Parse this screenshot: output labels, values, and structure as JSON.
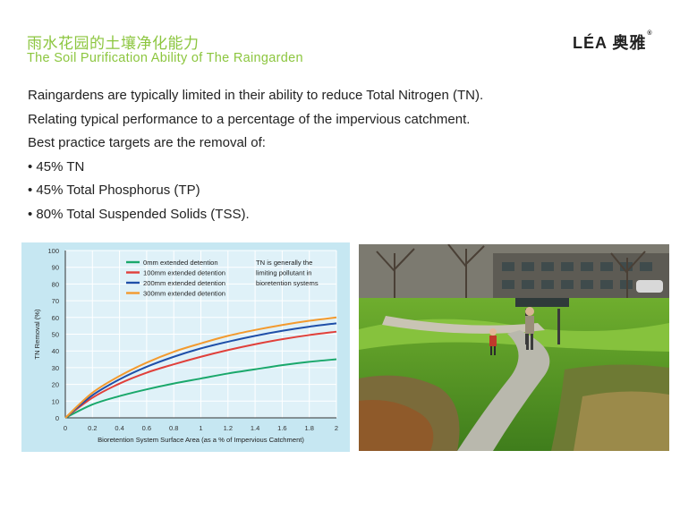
{
  "header": {
    "title_cn": "雨水花园的土壤净化能力",
    "title_en": "The Soil Purification Ability of The Raingarden",
    "logo_text": "LÉA 奥雅",
    "logo_mark": "®"
  },
  "content": {
    "lines": [
      "Raingardens are typically limited in their ability to reduce Total Nitrogen (TN).",
      "Relating typical performance to a percentage of the impervious catchment.",
      "Best practice targets are the removal of:",
      "• 45% TN",
      "• 45% Total Phosphorus (TP)",
      "• 80% Total Suspended Solids (TSS)."
    ]
  },
  "colors": {
    "accent_green": "#8cc63f",
    "chart_bg": "#c6e7f2"
  },
  "chart_data": {
    "type": "line",
    "ylabel": "TN Removal (%)",
    "xlabel": "Bioretention System Surface Area (as a % of Impervious Catchment)",
    "xlim": [
      0,
      2
    ],
    "ylim": [
      0,
      100
    ],
    "x_ticks": [
      "0",
      "0.2",
      "0.4",
      "0.6",
      "0.8",
      "1",
      "1.2",
      "1.4",
      "1.6",
      "1.8",
      "2"
    ],
    "y_ticks": [
      "0",
      "10",
      "20",
      "30",
      "40",
      "50",
      "60",
      "70",
      "80",
      "90",
      "100"
    ],
    "grid": true,
    "legend_position": "top-right",
    "annotation": [
      "TN is generally the",
      "limiting pollutant in",
      "bioretention systems"
    ],
    "x": [
      0,
      0.2,
      0.4,
      0.6,
      0.8,
      1.0,
      1.2,
      1.4,
      1.6,
      1.8,
      2.0
    ],
    "series": [
      {
        "name": "0mm extended detention",
        "color": "#1aa86b",
        "values": [
          0,
          8,
          13,
          17,
          20.5,
          23.5,
          26.5,
          29,
          31.5,
          33.5,
          35
        ]
      },
      {
        "name": "100mm extended detention",
        "color": "#e0403a",
        "values": [
          0,
          12,
          20.5,
          27,
          32,
          36.5,
          40.5,
          44,
          47,
          49.5,
          51.5
        ]
      },
      {
        "name": "200mm extended detention",
        "color": "#1f4fa8",
        "values": [
          0,
          13.5,
          23,
          30.5,
          36.5,
          41.5,
          45.5,
          49,
          52,
          54.5,
          56.5
        ]
      },
      {
        "name": "300mm extended detention",
        "color": "#f39a2e",
        "values": [
          0,
          15,
          25,
          33,
          39.5,
          44.5,
          49,
          52.5,
          55.5,
          58,
          60
        ]
      }
    ]
  }
}
